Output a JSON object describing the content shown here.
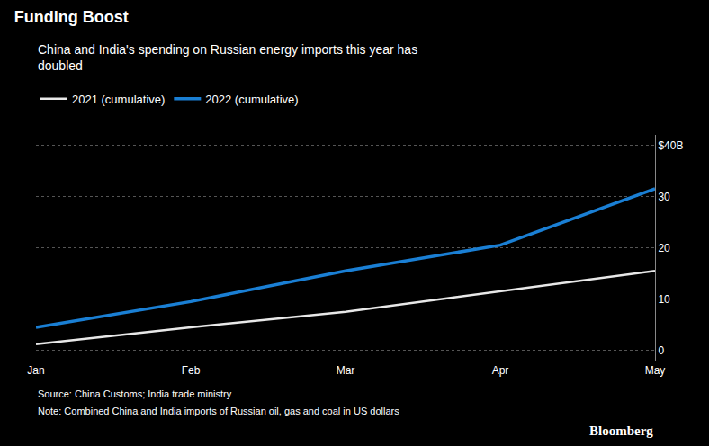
{
  "chart_data": {
    "type": "line",
    "title": "Funding Boost",
    "subtitle": "China and India's spending on Russian energy imports this year has\ndoubled",
    "categories": [
      "Jan",
      "Feb",
      "Mar",
      "Apr",
      "May"
    ],
    "series": [
      {
        "name": "2021 (cumulative)",
        "color": "#e8e8e8",
        "values": [
          1.2,
          4.5,
          7.5,
          11.5,
          15.5
        ]
      },
      {
        "name": "2022 (cumulative)",
        "color": "#1a7fd4",
        "values": [
          4.5,
          9.5,
          15.5,
          20.5,
          31.5
        ]
      }
    ],
    "ylim": [
      -2,
      42
    ],
    "yticks": [
      0,
      10,
      20,
      30,
      {
        "value": 40,
        "label": "$40B"
      }
    ],
    "grid": true,
    "legend": "top left",
    "annotations": [
      "Source: China Customs; India trade ministry",
      "Note: Combined China and India imports of Russian oil, gas and coal in US dollars",
      "Bloomberg"
    ]
  }
}
